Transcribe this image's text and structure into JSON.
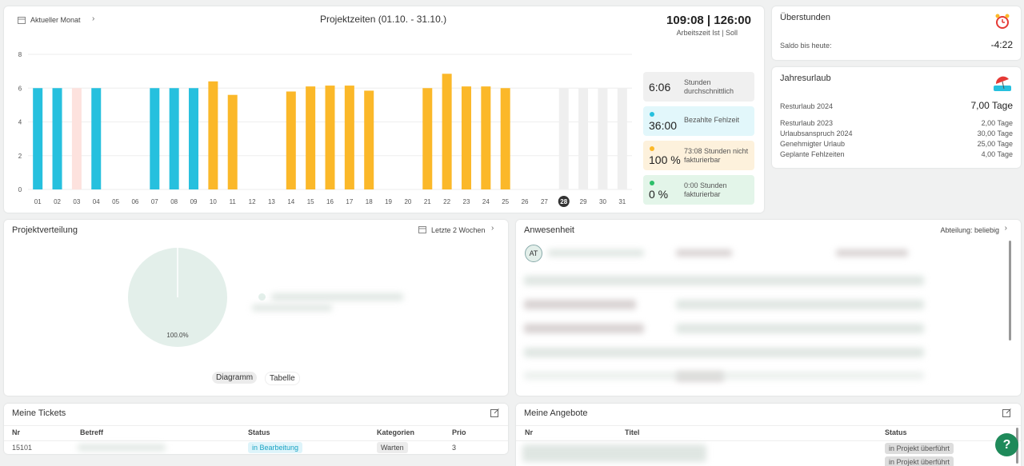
{
  "chart_data": [
    {
      "type": "bar",
      "title": "Projektzeiten (01.10. - 31.10.)",
      "categories": [
        "01",
        "02",
        "03",
        "04",
        "05",
        "06",
        "07",
        "08",
        "09",
        "10",
        "11",
        "12",
        "13",
        "14",
        "15",
        "16",
        "17",
        "18",
        "19",
        "20",
        "21",
        "22",
        "23",
        "24",
        "25",
        "26",
        "27",
        "28",
        "29",
        "30",
        "31"
      ],
      "values": [
        6,
        6,
        6,
        6,
        0,
        0,
        6,
        6,
        6,
        6.4,
        5.6,
        0,
        0,
        5.8,
        6.1,
        6.15,
        6.15,
        5.85,
        0,
        0,
        6,
        6.85,
        6.1,
        6.1,
        6,
        0,
        0,
        6,
        6,
        6,
        6
      ],
      "colors": [
        "#26c0de",
        "#26c0de",
        "#fde2de",
        "#26c0de",
        "#26c0de",
        "#26c0de",
        "#26c0de",
        "#26c0de",
        "#26c0de",
        "#fbb829",
        "#fbb829",
        "#fbb829",
        "#fbb829",
        "#fbb829",
        "#fbb829",
        "#fbb829",
        "#fbb829",
        "#fbb829",
        "#fbb829",
        "#fbb829",
        "#fbb829",
        "#fbb829",
        "#fbb829",
        "#fbb829",
        "#fbb829",
        "#fbb829",
        "#fbb829",
        "#efefef",
        "#efefef",
        "#efefef",
        "#efefef"
      ],
      "ylim": [
        0,
        8
      ],
      "yticks": [
        0,
        2,
        4,
        6,
        8
      ],
      "grid": true
    },
    {
      "type": "pie",
      "values": [
        100
      ],
      "value_labels": [
        "100.0%"
      ],
      "colors": [
        "#e3efea"
      ]
    }
  ],
  "projektzeiten": {
    "period_button": "Aktueller Monat",
    "total": "109:08 | 126:00",
    "total_label": "Arbeitszeit Ist | Soll",
    "stats": [
      {
        "value": "6:06",
        "label": "Stunden durchschnittlich"
      },
      {
        "value": "36:00",
        "label": "Bezahlte Fehlzeit"
      },
      {
        "value": "100 %",
        "label": "73:08 Stunden nicht fakturierbar"
      },
      {
        "value": "0 %",
        "label": "0:00 Stunden fakturierbar"
      }
    ]
  },
  "ueberstunden": {
    "title": "Überstunden",
    "label": "Saldo bis heute:",
    "value": "-4:22"
  },
  "jahresurlaub": {
    "title": "Jahresurlaub",
    "main": {
      "label": "Resturlaub 2024",
      "value": "7,00 Tage"
    },
    "rows": [
      {
        "label": "Resturlaub 2023",
        "value": "2,00 Tage"
      },
      {
        "label": "Urlaubsanspruch 2024",
        "value": "30,00 Tage"
      },
      {
        "label": "Genehmigter Urlaub",
        "value": "25,00 Tage"
      },
      {
        "label": "Geplante Fehlzeiten",
        "value": "4,00 Tage"
      }
    ]
  },
  "projektverteilung": {
    "title": "Projektverteilung",
    "period_button": "Letzte 2 Wochen",
    "tabs": [
      "Diagramm",
      "Tabelle"
    ]
  },
  "anwesenheit": {
    "title": "Anwesenheit",
    "filter": "Abteilung: beliebig",
    "avatar": "AT"
  },
  "tickets": {
    "title": "Meine Tickets",
    "columns": [
      "Nr",
      "Betreff",
      "Status",
      "Kategorien",
      "Prio"
    ],
    "rows": [
      {
        "nr": "15101",
        "status": "in Bearbeitung",
        "kategorie": "Warten",
        "prio": "3"
      }
    ]
  },
  "angebote": {
    "title": "Meine Angebote",
    "columns": [
      "Nr",
      "Titel",
      "Status"
    ],
    "rows": [
      {
        "status": "in Projekt überführt"
      },
      {
        "status": "in Projekt überführt"
      }
    ]
  },
  "help_button": "?"
}
